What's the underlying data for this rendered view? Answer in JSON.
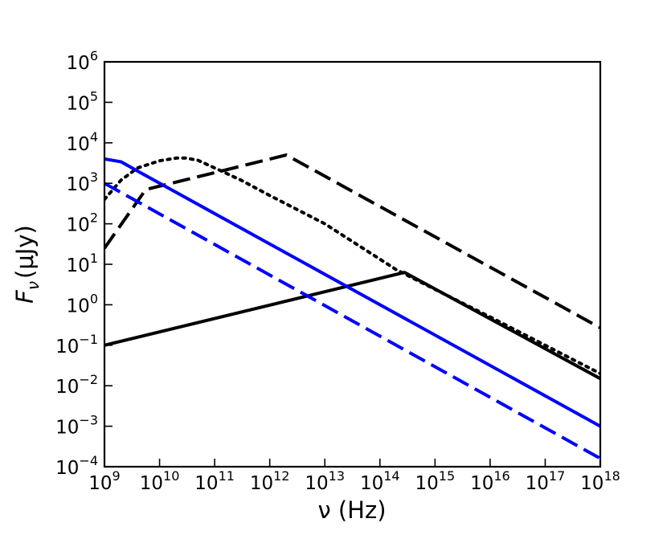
{
  "chart_data": {
    "type": "line",
    "title": "",
    "xlabel": "ν (Hz)",
    "ylabel_main": "F",
    "ylabel_sub": "ν",
    "ylabel_unit": "(μJy)",
    "xscale": "log",
    "yscale": "log",
    "xlim": [
      1000000000.0,
      1e+18
    ],
    "ylim": [
      0.0001,
      1000000.0
    ],
    "grid": false,
    "legend": "none",
    "x_ticks": [
      {
        "base": "10",
        "exp": "9",
        "value": 1000000000.0
      },
      {
        "base": "10",
        "exp": "10",
        "value": 10000000000.0
      },
      {
        "base": "10",
        "exp": "11",
        "value": 100000000000.0
      },
      {
        "base": "10",
        "exp": "12",
        "value": 1000000000000.0
      },
      {
        "base": "10",
        "exp": "13",
        "value": 10000000000000.0
      },
      {
        "base": "10",
        "exp": "14",
        "value": 100000000000000.0
      },
      {
        "base": "10",
        "exp": "15",
        "value": 1000000000000000.0
      },
      {
        "base": "10",
        "exp": "16",
        "value": 1e+16
      },
      {
        "base": "10",
        "exp": "17",
        "value": 1e+17
      },
      {
        "base": "10",
        "exp": "18",
        "value": 1e+18
      }
    ],
    "y_ticks": [
      {
        "base": "10",
        "exp": "−4",
        "value": 0.0001
      },
      {
        "base": "10",
        "exp": "−3",
        "value": 0.001
      },
      {
        "base": "10",
        "exp": "−2",
        "value": 0.01
      },
      {
        "base": "10",
        "exp": "−1",
        "value": 0.1
      },
      {
        "base": "10",
        "exp": "0",
        "value": 1
      },
      {
        "base": "10",
        "exp": "1",
        "value": 10
      },
      {
        "base": "10",
        "exp": "2",
        "value": 100
      },
      {
        "base": "10",
        "exp": "3",
        "value": 1000
      },
      {
        "base": "10",
        "exp": "4",
        "value": 10000
      },
      {
        "base": "10",
        "exp": "5",
        "value": 100000
      },
      {
        "base": "10",
        "exp": "6",
        "value": 1000000
      }
    ],
    "series": [
      {
        "color": "#000000",
        "style": "solid",
        "x": [
          1000000000.0,
          280000000000000.0,
          1e+18
        ],
        "y": [
          0.1,
          6.3,
          0.015
        ]
      },
      {
        "color": "#000000",
        "style": "dashed",
        "x": [
          1000000000.0,
          5600000000.0,
          2000000000000.0,
          1e+18
        ],
        "y": [
          25,
          700,
          5000,
          0.27
        ]
      },
      {
        "color": "#000000",
        "style": "dotted",
        "x": [
          1000000000.0,
          2000000000.0,
          4000000000.0,
          10000000000.0,
          20000000000.0,
          30000000000.0,
          50000000000.0,
          100000000000.0,
          300000000000.0,
          1000000000000.0,
          10000000000000.0,
          200000000000000.0,
          1000000000000000.0,
          1e+16,
          1e+17,
          1e+18
        ],
        "y": [
          400,
          1200,
          2400,
          3600,
          4200,
          4200,
          3700,
          2400,
          1200,
          500,
          100,
          7.3,
          2.4,
          0.5,
          0.1,
          0.02
        ]
      },
      {
        "color": "#0000ff",
        "style": "solid",
        "x": [
          1000000000.0,
          2000000000.0,
          4000000000.0,
          1e+18
        ],
        "y": [
          4000,
          3400,
          2000,
          0.001
        ]
      },
      {
        "color": "#0000ff",
        "style": "dashed",
        "x": [
          1000000000.0,
          1e+18
        ],
        "y": [
          1000,
          0.00016
        ]
      }
    ]
  }
}
